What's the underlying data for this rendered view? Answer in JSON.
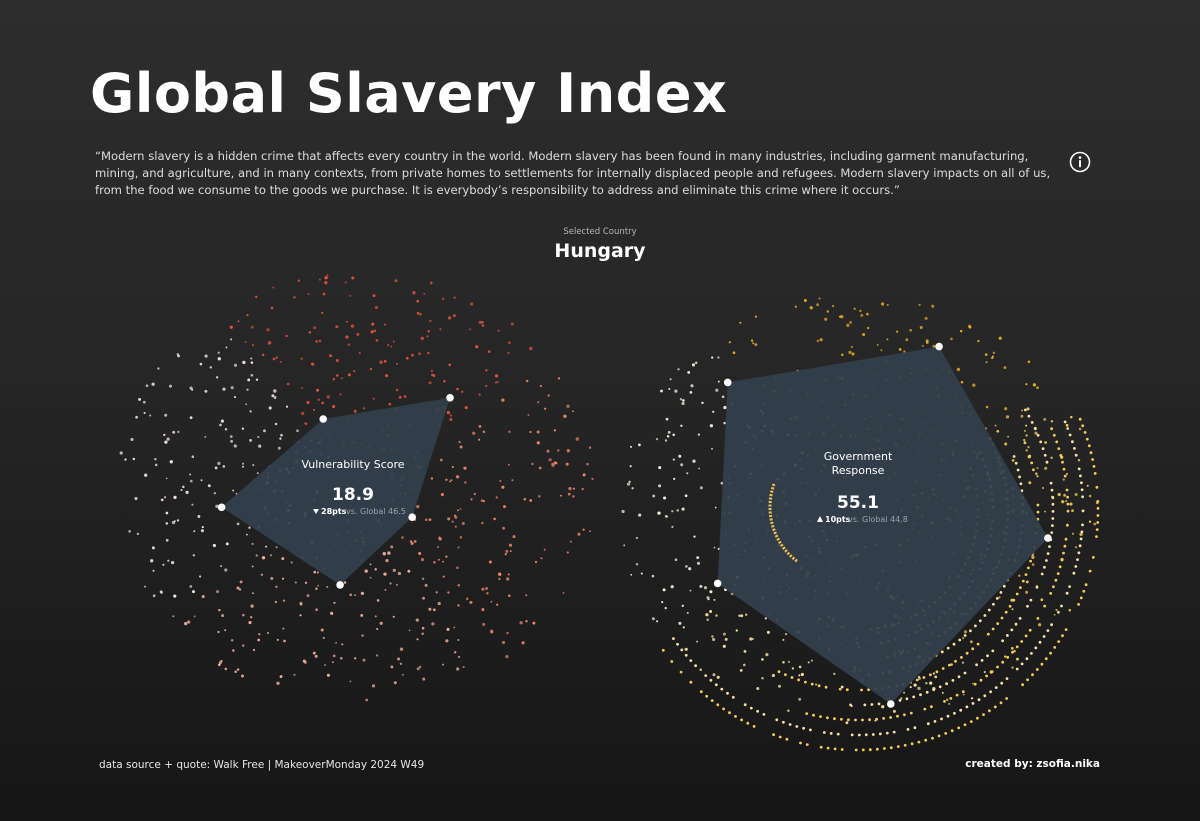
{
  "title": "Global Slavery Index",
  "quote": "“Modern slavery is a hidden crime that affects every country in the world. Modern slavery has been found in many industries, including garment manufacturing, mining, and agriculture, and in many contexts, from private homes to settlements for internally displaced people and refugees. Modern slavery impacts on all of us, from the food we consume to the goods we purchase. It is everybody’s responsibility to address and eliminate this crime where it occurs.”",
  "selected": {
    "label": "Selected Country",
    "country": "Hungary"
  },
  "icons": {
    "info": "info-icon"
  },
  "colors": {
    "vulnerability_dots": [
      "#e2543d",
      "#f08a6c",
      "#f3b3a0",
      "#f6e5df"
    ],
    "response_dots": [
      "#f0b62b",
      "#f5cc5c",
      "#f8e2a8",
      "#fbf2dc"
    ],
    "polygon_fill": "#34404d"
  },
  "chart_data": [
    {
      "type": "radar",
      "title": "Vulnerability Score",
      "country": "Hungary",
      "value": "18.9",
      "direction": "down",
      "delta_label": "28pts",
      "global_label": "vs. Global 46.5",
      "global_value": 46.5,
      "scale": [
        0,
        100
      ],
      "dimension_scores": [
        54,
        26,
        41,
        57,
        32
      ]
    },
    {
      "type": "radar",
      "title_lines": [
        "Government",
        "Response"
      ],
      "country": "Hungary",
      "value": "55.1",
      "direction": "up",
      "delta_label": "10pts",
      "global_label": "vs. Global 44.8",
      "global_value": 44.8,
      "scale": [
        0,
        100
      ],
      "dimension_scores": [
        76,
        80,
        82,
        66,
        76
      ]
    }
  ],
  "footer": {
    "source": "data source + quote: Walk Free  | MakeoverMonday 2024 W49",
    "credit": "created by: zsofia.nika"
  }
}
